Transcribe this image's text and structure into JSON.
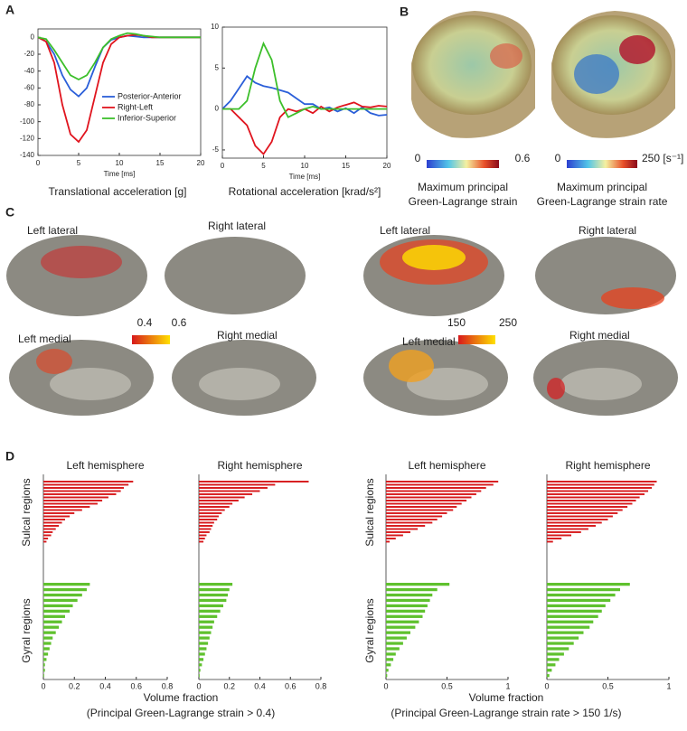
{
  "panel_labels": [
    "A",
    "B",
    "C",
    "D"
  ],
  "panel_b": {
    "colorbars": [
      {
        "min": "0",
        "max": "0.6",
        "caption": [
          "Maximum principal",
          "Green-Lagrange strain"
        ]
      },
      {
        "min": "0",
        "max": "250 [s⁻¹]",
        "caption": [
          "Maximum principal",
          "Green-Lagrange strain rate"
        ]
      }
    ]
  },
  "panel_c": {
    "views": [
      "Left lateral",
      "Right lateral",
      "Left medial",
      "Right medial",
      "Left lateral",
      "Right lateral",
      "Left medial",
      "Right medial"
    ],
    "colorbars": [
      {
        "min": "0.4",
        "max": "0.6"
      },
      {
        "min": "150",
        "max": "250"
      }
    ]
  },
  "chart_data": [
    {
      "type": "line",
      "xlabel": "Time [ms]",
      "caption": "Translational acceleration [g]",
      "x": [
        0,
        1,
        2,
        3,
        4,
        5,
        6,
        7,
        8,
        9,
        10,
        11,
        12,
        13,
        14,
        15,
        16,
        17,
        18,
        19,
        20
      ],
      "xlim": [
        0,
        20
      ],
      "xticks": [
        0,
        5,
        10,
        15,
        20
      ],
      "ylim": [
        -140,
        10
      ],
      "yticks": [
        0,
        -20,
        -40,
        -60,
        -80,
        -100,
        -120,
        -140
      ],
      "legend": "center right",
      "series": [
        {
          "name": "Posterior-Anterior",
          "color": "#2b5fd9",
          "values": [
            0,
            -5,
            -20,
            -45,
            -62,
            -70,
            -60,
            -35,
            -12,
            -3,
            0,
            2,
            1,
            0,
            0,
            0,
            0,
            0,
            0,
            0,
            0
          ]
        },
        {
          "name": "Right-Left",
          "color": "#e0141e",
          "values": [
            0,
            -5,
            -30,
            -80,
            -115,
            -124,
            -110,
            -70,
            -30,
            -8,
            0,
            2,
            3,
            2,
            0,
            0,
            0,
            0,
            0,
            0,
            0
          ]
        },
        {
          "name": "Inferior-Superior",
          "color": "#3cbf2a",
          "values": [
            0,
            -2,
            -15,
            -30,
            -45,
            -50,
            -45,
            -30,
            -12,
            -2,
            2,
            5,
            4,
            2,
            1,
            0,
            0,
            0,
            0,
            0,
            0
          ]
        }
      ]
    },
    {
      "type": "line",
      "xlabel": "Time [ms]",
      "caption": "Rotational acceleration [krad/s²]",
      "x": [
        0,
        1,
        2,
        3,
        4,
        5,
        6,
        7,
        8,
        9,
        10,
        11,
        12,
        13,
        14,
        15,
        16,
        17,
        18,
        19,
        20
      ],
      "xlim": [
        0,
        20
      ],
      "xticks": [
        0,
        5,
        10,
        15,
        20
      ],
      "ylim": [
        -6,
        10
      ],
      "yticks": [
        -5,
        0,
        5,
        10
      ],
      "series": [
        {
          "color": "#2b5fd9",
          "values": [
            0,
            1,
            2.5,
            4,
            3.2,
            2.8,
            2.6,
            2.3,
            2,
            1.3,
            0.6,
            0.6,
            0,
            0.2,
            -0.3,
            0.1,
            -0.5,
            0.2,
            -0.5,
            -0.8,
            -0.7
          ]
        },
        {
          "color": "#e0141e",
          "values": [
            0,
            0,
            -1,
            -2,
            -4.5,
            -5.5,
            -4,
            -1,
            0,
            -0.3,
            0,
            -0.5,
            0.3,
            -0.3,
            0.2,
            0.5,
            0.8,
            0.3,
            0.2,
            0.4,
            0.3
          ]
        },
        {
          "color": "#3cbf2a",
          "values": [
            0,
            0,
            0,
            1,
            5,
            8,
            6,
            1,
            -1,
            -0.5,
            0,
            0.3,
            0,
            0,
            0,
            0,
            0,
            0,
            0,
            0,
            0
          ]
        }
      ]
    },
    {
      "type": "bar",
      "orientation": "horizontal",
      "xlabel": "Volume fraction",
      "subtitle": "(Principal Green-Lagrange strain > 0.4)",
      "xlim": [
        0,
        0.8
      ],
      "xticks": [
        0,
        0.2,
        0.4,
        0.6,
        0.8
      ],
      "groups": [
        {
          "name": "Sulcal regions",
          "color": "#d7191c"
        },
        {
          "name": "Gyral regions",
          "color": "#5fc12e"
        }
      ],
      "panels": [
        {
          "title": "Left hemisphere",
          "values": [
            [
              0.58,
              0.55,
              0.52,
              0.5,
              0.47,
              0.42,
              0.38,
              0.35,
              0.3,
              0.25,
              0.2,
              0.17,
              0.14,
              0.12,
              0.1,
              0.08,
              0.06,
              0.05,
              0.03,
              0.02
            ],
            [
              0.3,
              0.28,
              0.25,
              0.22,
              0.19,
              0.17,
              0.14,
              0.12,
              0.1,
              0.08,
              0.06,
              0.05,
              0.04,
              0.03,
              0.02,
              0.01,
              0.01,
              0.005
            ]
          ]
        },
        {
          "title": "Right hemisphere",
          "values": [
            [
              0.72,
              0.5,
              0.45,
              0.4,
              0.35,
              0.3,
              0.26,
              0.22,
              0.2,
              0.17,
              0.15,
              0.13,
              0.12,
              0.1,
              0.09,
              0.08,
              0.07,
              0.05,
              0.04,
              0.03
            ],
            [
              0.22,
              0.2,
              0.19,
              0.18,
              0.16,
              0.14,
              0.12,
              0.1,
              0.09,
              0.08,
              0.07,
              0.06,
              0.05,
              0.04,
              0.03,
              0.02,
              0.01,
              0.005
            ]
          ]
        }
      ]
    },
    {
      "type": "bar",
      "orientation": "horizontal",
      "xlabel": "Volume fraction",
      "subtitle": "(Principal Green-Lagrange strain rate > 150 1/s)",
      "xlim": [
        0,
        1
      ],
      "xticks": [
        0,
        0.5,
        1
      ],
      "groups": [
        {
          "name": "Sulcal regions",
          "color": "#d7191c"
        },
        {
          "name": "Gyral regions",
          "color": "#5fc12e"
        }
      ],
      "panels": [
        {
          "title": "Left hemisphere",
          "values": [
            [
              0.92,
              0.88,
              0.82,
              0.78,
              0.74,
              0.7,
              0.66,
              0.62,
              0.58,
              0.55,
              0.5,
              0.46,
              0.42,
              0.38,
              0.32,
              0.26,
              0.2,
              0.14,
              0.08,
              0.03
            ],
            [
              0.52,
              0.42,
              0.38,
              0.36,
              0.34,
              0.32,
              0.3,
              0.27,
              0.24,
              0.2,
              0.17,
              0.14,
              0.11,
              0.08,
              0.06,
              0.04,
              0.02,
              0.01
            ]
          ]
        },
        {
          "title": "Right hemisphere",
          "values": [
            [
              0.9,
              0.88,
              0.86,
              0.83,
              0.8,
              0.76,
              0.73,
              0.7,
              0.66,
              0.62,
              0.58,
              0.54,
              0.5,
              0.45,
              0.4,
              0.34,
              0.28,
              0.2,
              0.12,
              0.05
            ],
            [
              0.68,
              0.6,
              0.56,
              0.52,
              0.48,
              0.45,
              0.42,
              0.38,
              0.35,
              0.3,
              0.26,
              0.22,
              0.18,
              0.14,
              0.1,
              0.07,
              0.04,
              0.02
            ]
          ]
        }
      ]
    }
  ]
}
